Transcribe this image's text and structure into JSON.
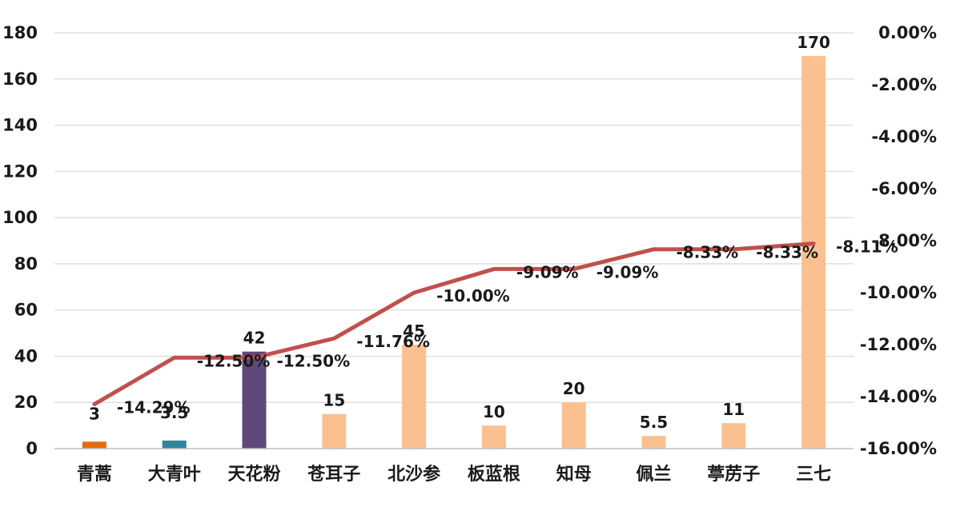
{
  "chart_data": {
    "type": "bar",
    "title": "",
    "xlabel": "",
    "ylabel": "",
    "y2label": "",
    "categories": [
      "青蒿",
      "大青叶",
      "天花粉",
      "苍耳子",
      "北沙参",
      "板蓝根",
      "知母",
      "佩兰",
      "葶苈子",
      "三七"
    ],
    "ylim": [
      0,
      180
    ],
    "yticks": [
      0,
      20,
      40,
      60,
      80,
      100,
      120,
      140,
      160,
      180
    ],
    "y2lim": [
      -16,
      0
    ],
    "y2ticks": [
      "0.00%",
      "-2.00%",
      "-4.00%",
      "-6.00%",
      "-8.00%",
      "-10.00%",
      "-12.00%",
      "-14.00%",
      "-16.00%"
    ],
    "grid": true,
    "series": [
      {
        "type": "bar",
        "axis": "left",
        "values": [
          3,
          3.5,
          42,
          15,
          45,
          10,
          20,
          5.5,
          11,
          170
        ],
        "labels": [
          "3",
          "3.5",
          "42",
          "15",
          "45",
          "10",
          "20",
          "5.5",
          "11",
          "170"
        ],
        "colors": [
          "#E36C0A",
          "#31859C",
          "#5F497A",
          "#FAC090",
          "#FAC090",
          "#FAC090",
          "#FAC090",
          "#FAC090",
          "#FAC090",
          "#FAC090"
        ]
      },
      {
        "type": "line",
        "axis": "right",
        "values": [
          -14.29,
          -12.5,
          -12.5,
          -11.76,
          -10.0,
          -9.09,
          -9.09,
          -8.33,
          -8.33,
          -8.11
        ],
        "labels": [
          "-14.29%",
          "-12.50%",
          "-12.50%",
          "-11.76%",
          "-10.00%",
          "-9.09%",
          "-9.09%",
          "-8.33%",
          "-8.33%",
          "-8.11%"
        ],
        "color": "#C0504D"
      }
    ]
  }
}
